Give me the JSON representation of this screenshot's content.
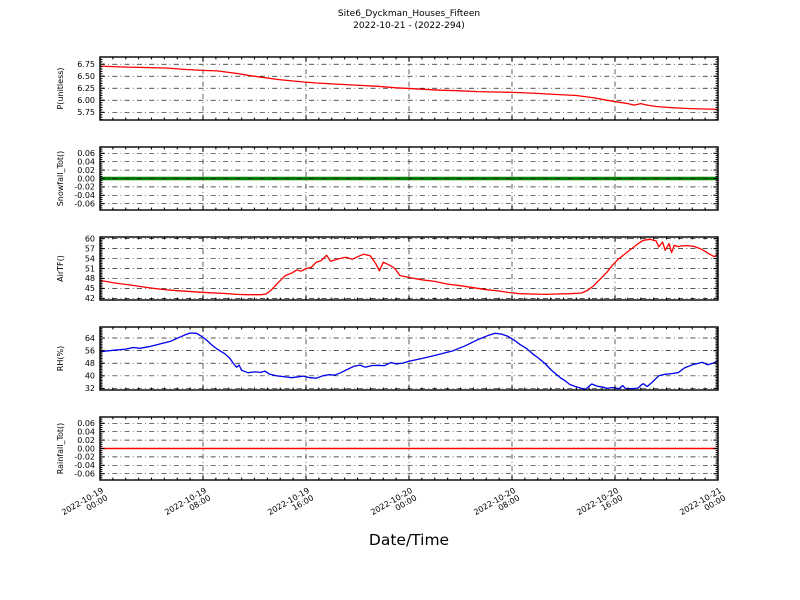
{
  "title": {
    "line1": "Site6_Dyckman_Houses_Fifteen",
    "line2": "2022-10-21 - (2022-294)"
  },
  "x_axis": {
    "label": "Date/Time",
    "range_hours": [
      0,
      48
    ],
    "tick_hours": [
      0,
      8,
      16,
      24,
      32,
      40,
      48
    ],
    "tick_labels": [
      [
        "2022-10-19",
        "00:00"
      ],
      [
        "2022-10-19",
        "08:00"
      ],
      [
        "2022-10-19",
        "16:00"
      ],
      [
        "2022-10-20",
        "00:00"
      ],
      [
        "2022-10-20",
        "08:00"
      ],
      [
        "2022-10-20",
        "16:00"
      ],
      [
        "2022-10-21",
        "00:00"
      ]
    ],
    "minor_step_hours": 1
  },
  "chart_data": [
    {
      "type": "line",
      "ylabel": "P(unitless)",
      "color": "#ff0000",
      "line_width": 1.3,
      "yticks": [
        5.75,
        6.0,
        6.25,
        6.5,
        6.75
      ],
      "tick_decimals": 2,
      "ylim": [
        5.59,
        6.9
      ],
      "minor_step": 0.05,
      "grid_over_line": false,
      "x": [
        0,
        1.0,
        2.0,
        3.8,
        5.3,
        6.7,
        8.2,
        9.1,
        10.6,
        11.5,
        12.5,
        13.9,
        15.4,
        16.8,
        18.7,
        20.2,
        21.6,
        23.0,
        25.0,
        26.4,
        27.8,
        29.3,
        31.2,
        32.6,
        34.1,
        35.5,
        37.0,
        38.4,
        39.4,
        40.3,
        41.0,
        41.5,
        42.0,
        42.5,
        43.2,
        44.2,
        45.6,
        46.6,
        48.0
      ],
      "values": [
        6.71,
        6.7,
        6.69,
        6.68,
        6.67,
        6.64,
        6.62,
        6.61,
        6.56,
        6.52,
        6.48,
        6.43,
        6.39,
        6.36,
        6.33,
        6.31,
        6.29,
        6.26,
        6.23,
        6.21,
        6.2,
        6.18,
        6.17,
        6.16,
        6.14,
        6.12,
        6.1,
        6.05,
        6.0,
        5.96,
        5.93,
        5.9,
        5.93,
        5.9,
        5.87,
        5.85,
        5.83,
        5.82,
        5.81
      ]
    },
    {
      "type": "line",
      "ylabel": "Snowfall_Tot()",
      "color": "#008000",
      "line_width": 3.4,
      "yticks": [
        -0.06,
        -0.04,
        -0.02,
        0.0,
        0.02,
        0.04,
        0.06
      ],
      "tick_decimals": 2,
      "ylim": [
        -0.075,
        0.075
      ],
      "minor_step": 0.005,
      "grid_over_line": true,
      "x": [
        0,
        48
      ],
      "values": [
        0.0,
        0.0
      ]
    },
    {
      "type": "line",
      "ylabel": "AirTF()",
      "color": "#ff0000",
      "line_width": 1.3,
      "yticks": [
        42,
        45,
        48,
        51,
        54,
        57,
        60
      ],
      "tick_decimals": 0,
      "ylim": [
        41.5,
        60.5
      ],
      "minor_step": 0.5,
      "grid_over_line": false,
      "x": [
        0,
        1.2,
        2.4,
        3.6,
        4.8,
        6.0,
        7.2,
        8.4,
        9.6,
        10.6,
        11.5,
        12.5,
        12.9,
        13.3,
        13.9,
        14.4,
        14.9,
        15.3,
        15.6,
        16.0,
        16.4,
        16.8,
        17.2,
        17.6,
        17.9,
        18.6,
        19.1,
        19.6,
        20.1,
        20.5,
        21.0,
        21.4,
        21.7,
        22.0,
        22.5,
        22.9,
        23.3,
        24.0,
        25.0,
        26.0,
        27.0,
        28.0,
        29.0,
        30.0,
        31.0,
        31.7,
        32.6,
        33.6,
        34.6,
        35.5,
        36.5,
        37.4,
        37.9,
        38.4,
        38.9,
        39.4,
        39.8,
        40.3,
        40.8,
        41.3,
        41.8,
        42.2,
        42.7,
        43.2,
        43.4,
        43.7,
        43.9,
        44.2,
        44.4,
        44.6,
        44.9,
        45.1,
        45.6,
        46.1,
        46.6,
        47.0,
        47.4,
        47.7,
        48.0
      ],
      "values": [
        47.4,
        46.6,
        46.0,
        45.3,
        44.7,
        44.3,
        44.0,
        43.7,
        43.5,
        43.2,
        43.1,
        43.1,
        43.3,
        44.5,
        47.0,
        48.9,
        49.6,
        50.6,
        50.2,
        51.0,
        51.3,
        52.9,
        53.4,
        55.0,
        53.2,
        54.0,
        54.4,
        53.8,
        54.7,
        55.3,
        54.8,
        52.6,
        50.3,
        52.9,
        52.0,
        51.0,
        48.9,
        48.3,
        47.6,
        47.1,
        46.3,
        45.8,
        45.2,
        44.6,
        44.2,
        43.8,
        43.4,
        43.3,
        43.2,
        43.3,
        43.4,
        43.6,
        44.5,
        46.0,
        48.0,
        50.0,
        52.0,
        54.0,
        55.5,
        57.0,
        58.5,
        59.5,
        59.8,
        59.3,
        57.5,
        59.0,
        56.5,
        58.5,
        55.8,
        58.0,
        57.6,
        57.8,
        57.9,
        57.7,
        57.0,
        56.2,
        55.2,
        54.6,
        55.2
      ]
    },
    {
      "type": "line",
      "ylabel": "RH(%)",
      "color": "#0000ee",
      "line_width": 1.3,
      "yticks": [
        32,
        40,
        48,
        56,
        64
      ],
      "tick_decimals": 0,
      "ylim": [
        31,
        71
      ],
      "minor_step": 1,
      "grid_over_line": false,
      "x": [
        0,
        1.0,
        2.0,
        2.6,
        3.1,
        3.8,
        4.8,
        5.5,
        6.2,
        6.7,
        7.0,
        7.5,
        7.9,
        8.3,
        8.7,
        9.1,
        9.4,
        9.7,
        10.1,
        10.3,
        10.6,
        10.8,
        11.0,
        11.5,
        12.0,
        12.5,
        12.8,
        13.2,
        13.7,
        14.4,
        14.9,
        15.4,
        15.8,
        16.3,
        16.8,
        17.3,
        17.8,
        18.2,
        18.7,
        19.2,
        19.7,
        20.2,
        20.6,
        21.1,
        21.6,
        22.1,
        22.6,
        23.0,
        23.5,
        24.0,
        25.0,
        25.9,
        26.9,
        27.4,
        27.8,
        28.3,
        28.8,
        29.3,
        29.8,
        30.2,
        30.7,
        31.2,
        31.7,
        32.2,
        32.6,
        33.1,
        33.6,
        34.1,
        34.6,
        35.0,
        35.5,
        35.8,
        36.1,
        36.5,
        37.0,
        37.4,
        37.7,
        38.2,
        38.6,
        39.1,
        39.4,
        39.8,
        40.3,
        40.6,
        40.8,
        41.3,
        41.8,
        42.0,
        42.2,
        42.5,
        42.9,
        43.4,
        43.9,
        44.4,
        44.9,
        45.4,
        46.0,
        46.5,
        46.8,
        47.2,
        47.6,
        48.0
      ],
      "values": [
        55.3,
        56.2,
        57.0,
        58.0,
        57.5,
        58.5,
        60.5,
        62.0,
        64.5,
        66.3,
        67.2,
        67.0,
        65.0,
        62.5,
        59.5,
        57.0,
        55.5,
        54.0,
        51.0,
        48.5,
        45.5,
        46.8,
        43.5,
        42.0,
        42.5,
        42.2,
        43.0,
        41.0,
        40.0,
        39.3,
        38.8,
        39.4,
        39.8,
        38.8,
        38.5,
        40.0,
        40.8,
        40.4,
        42.0,
        44.0,
        46.0,
        46.8,
        45.5,
        46.5,
        46.7,
        46.4,
        48.5,
        47.5,
        48.1,
        49.2,
        51.0,
        52.8,
        54.8,
        55.8,
        57.2,
        58.8,
        60.8,
        62.8,
        64.5,
        65.8,
        67.0,
        66.5,
        65.0,
        62.5,
        60.0,
        57.5,
        54.0,
        51.0,
        47.5,
        44.0,
        40.5,
        38.5,
        37.0,
        34.5,
        33.0,
        32.0,
        31.4,
        34.8,
        33.5,
        32.8,
        32.0,
        32.6,
        31.8,
        33.8,
        32.0,
        31.8,
        32.2,
        34.0,
        35.0,
        33.2,
        36.0,
        40.0,
        41.0,
        41.4,
        42.0,
        45.0,
        47.0,
        48.0,
        48.6,
        47.0,
        48.0,
        49.4
      ]
    },
    {
      "type": "line",
      "ylabel": "Rainfall_Tot()",
      "color": "#ff0000",
      "line_width": 1.4,
      "yticks": [
        -0.06,
        -0.04,
        -0.02,
        0.0,
        0.02,
        0.04,
        0.06
      ],
      "tick_decimals": 2,
      "ylim": [
        -0.075,
        0.075
      ],
      "minor_step": 0.005,
      "grid_over_line": false,
      "x": [
        0,
        48
      ],
      "values": [
        0.0,
        0.0
      ]
    }
  ]
}
